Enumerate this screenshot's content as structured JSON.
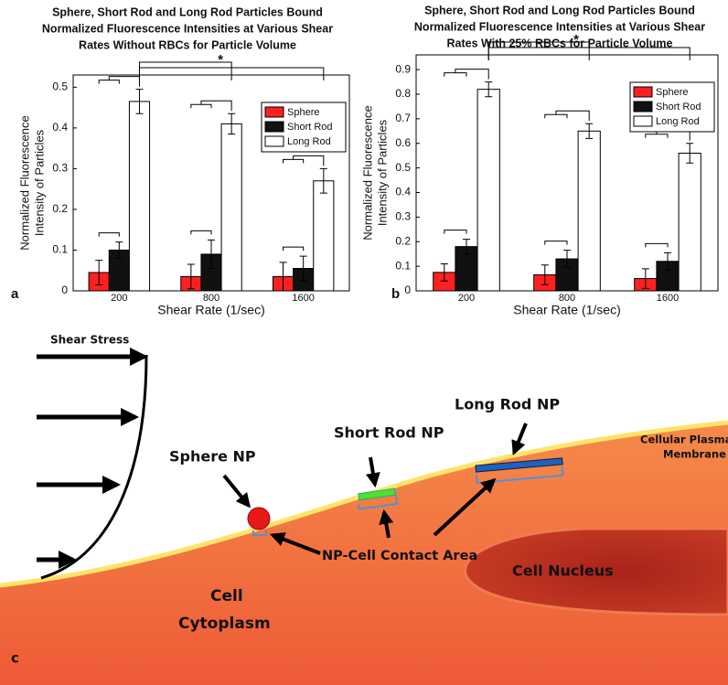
{
  "chart_data": [
    {
      "type": "bar",
      "title": [
        "Sphere, Short Rod and Long Rod Particles Bound",
        "Normalized Fluorescence Intensities at Various Shear",
        "Rates Without RBCs for Particle Volume"
      ],
      "xlabel": "Shear Rate (1/sec)",
      "ylabel": [
        "Normalized Fluorescence",
        "Intensity of Particles"
      ],
      "categories": [
        "200",
        "800",
        "1600"
      ],
      "series": [
        {
          "name": "Sphere",
          "color": "#ff2020",
          "values": [
            0.045,
            0.035,
            0.035
          ],
          "errors": [
            0.03,
            0.03,
            0.035
          ]
        },
        {
          "name": "Short Rod",
          "color": "#111111",
          "values": [
            0.1,
            0.09,
            0.055
          ],
          "errors": [
            0.02,
            0.035,
            0.03
          ]
        },
        {
          "name": "Long Rod",
          "color": "#ffffff",
          "values": [
            0.465,
            0.41,
            0.27
          ],
          "errors": [
            0.03,
            0.025,
            0.03
          ]
        }
      ],
      "ylim": [
        0,
        0.53
      ],
      "yticks": [
        0,
        0.1,
        0.2,
        0.3,
        0.4,
        0.5
      ],
      "legend": "upper right",
      "annotation": "*",
      "panel": "a"
    },
    {
      "type": "bar",
      "title": [
        "Sphere, Short Rod and Long Rod Particles Bound",
        "Normalized Fluorescence Intensities at Various Shear",
        "Rates With 25% RBCs for Particle Volume"
      ],
      "xlabel": "Shear Rate (1/sec)",
      "ylabel": [
        "Normalized Fluorescence",
        "Intensity of Particles"
      ],
      "categories": [
        "200",
        "800",
        "1600"
      ],
      "series": [
        {
          "name": "Sphere",
          "color": "#ff2020",
          "values": [
            0.075,
            0.065,
            0.05
          ],
          "errors": [
            0.035,
            0.04,
            0.04
          ]
        },
        {
          "name": "Short Rod",
          "color": "#111111",
          "values": [
            0.18,
            0.13,
            0.12
          ],
          "errors": [
            0.03,
            0.035,
            0.035
          ]
        },
        {
          "name": "Long Rod",
          "color": "#ffffff",
          "values": [
            0.82,
            0.65,
            0.56
          ],
          "errors": [
            0.03,
            0.03,
            0.04
          ]
        }
      ],
      "ylim": [
        0,
        0.96
      ],
      "yticks": [
        0,
        0.1,
        0.2,
        0.3,
        0.4,
        0.5,
        0.6,
        0.7,
        0.8,
        0.9
      ],
      "legend": "upper right",
      "annotation": "*",
      "panel": "b"
    }
  ],
  "diagram": {
    "panel": "c",
    "shear": "Shear Stress",
    "sphere": "Sphere NP",
    "short_rod": "Short Rod NP",
    "long_rod": "Long Rod NP",
    "membrane": [
      "Cellular Plasma",
      "Membrane"
    ],
    "contact": "NP-Cell Contact Area",
    "nucleus": "Cell Nucleus",
    "cytoplasm": [
      "Cell",
      "Cytoplasm"
    ]
  }
}
